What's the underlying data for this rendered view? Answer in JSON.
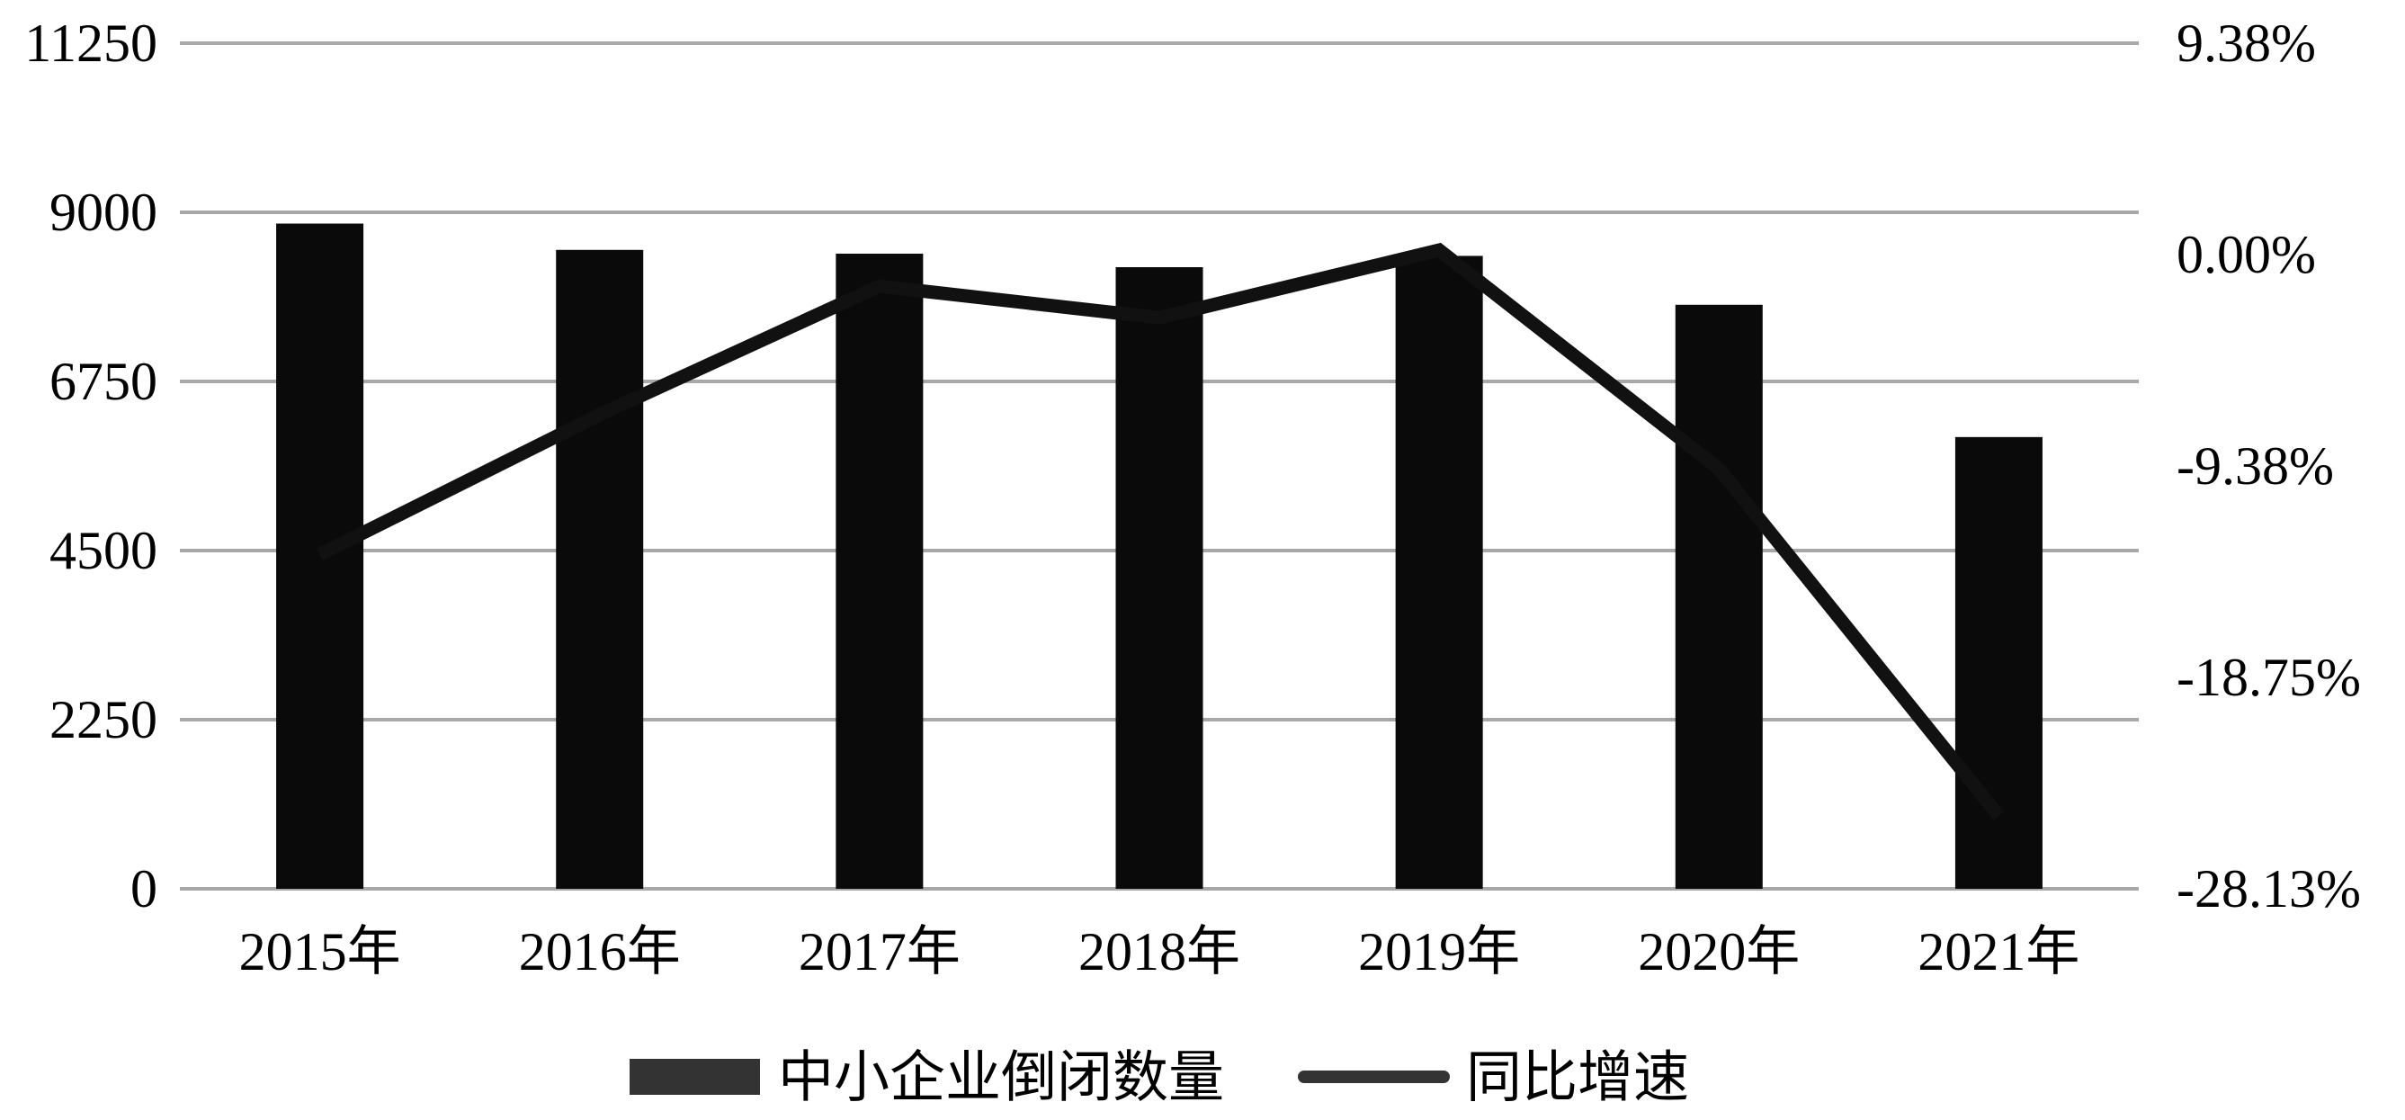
{
  "chart_data": {
    "type": "bar",
    "categories": [
      "2015年",
      "2016年",
      "2017年",
      "2018年",
      "2019年",
      "2020年",
      "2021年"
    ],
    "series": [
      {
        "name": "中小企业倒闭数量",
        "type": "bar",
        "axis": "left",
        "color": "#0a0a0a",
        "values": [
          8850,
          8500,
          8450,
          8270,
          8420,
          7770,
          6010
        ]
      },
      {
        "name": "同比增速",
        "type": "line",
        "axis": "right",
        "unit": "%",
        "color": "#111111",
        "values": [
          -13.3,
          -7.1,
          -1.4,
          -2.8,
          0.2,
          -9.5,
          -24.9
        ]
      }
    ],
    "y_left": {
      "ylim": [
        0,
        11250
      ],
      "ticks": [
        0,
        2250,
        4500,
        6750,
        9000,
        11250
      ],
      "tick_labels": [
        "0",
        "2250",
        "4500",
        "6750",
        "9000",
        "11250"
      ]
    },
    "y_right": {
      "ylim": [
        -28.13,
        9.38
      ],
      "ticks": [
        -28.13,
        -18.75,
        -9.38,
        0.0,
        9.38
      ],
      "tick_labels": [
        "-28.13%",
        "-18.75%",
        "-9.38%",
        "0.00%",
        "9.38%"
      ]
    },
    "title": "",
    "xlabel": "",
    "ylabel": "",
    "grid": true,
    "legend_position": "bottom"
  }
}
